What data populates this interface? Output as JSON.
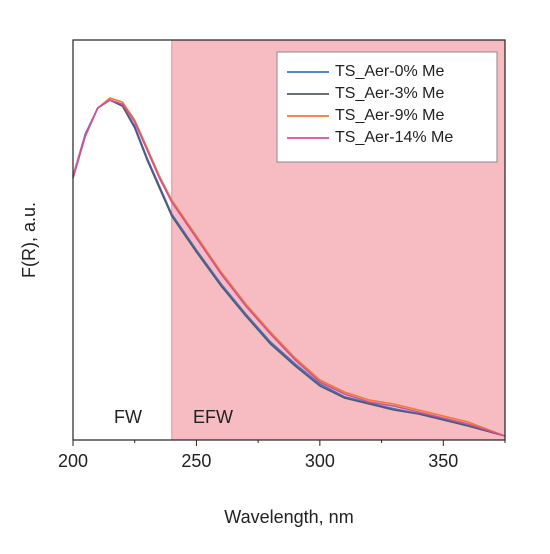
{
  "chart_data": {
    "type": "line",
    "xlabel": "Wavelength, nm",
    "ylabel": "F(R), a.u.",
    "annotations": [
      "FW",
      "EFW"
    ],
    "highlight": {
      "xmin": 240,
      "xmax": 375,
      "color": "#f6bcc2"
    },
    "x": [
      200,
      205,
      210,
      215,
      220,
      225,
      230,
      235,
      240,
      250,
      260,
      270,
      280,
      290,
      300,
      310,
      320,
      330,
      340,
      350,
      360,
      375
    ],
    "series": [
      {
        "name": "TS_Aer-0% Me",
        "color": "#3d72c8",
        "values": [
          0.66,
          0.765,
          0.83,
          0.85,
          0.835,
          0.785,
          0.705,
          0.635,
          0.565,
          0.475,
          0.39,
          0.315,
          0.245,
          0.19,
          0.14,
          0.108,
          0.092,
          0.078,
          0.066,
          0.052,
          0.036,
          0.01
        ]
      },
      {
        "name": "TS_Aer-3% Me",
        "color": "#555a66",
        "values": [
          0.655,
          0.76,
          0.83,
          0.85,
          0.835,
          0.78,
          0.7,
          0.63,
          0.56,
          0.47,
          0.385,
          0.31,
          0.24,
          0.185,
          0.135,
          0.105,
          0.09,
          0.075,
          0.065,
          0.05,
          0.035,
          0.01
        ]
      },
      {
        "name": "TS_Aer-9% Me",
        "color": "#f07a30",
        "values": [
          0.66,
          0.76,
          0.83,
          0.855,
          0.845,
          0.8,
          0.73,
          0.66,
          0.6,
          0.51,
          0.42,
          0.34,
          0.27,
          0.205,
          0.15,
          0.12,
          0.1,
          0.09,
          0.075,
          0.06,
          0.045,
          0.01
        ]
      },
      {
        "name": "TS_Aer-14% Me",
        "color": "#d04fa0",
        "values": [
          0.655,
          0.76,
          0.83,
          0.85,
          0.84,
          0.795,
          0.725,
          0.655,
          0.595,
          0.505,
          0.415,
          0.335,
          0.265,
          0.2,
          0.145,
          0.115,
          0.095,
          0.085,
          0.07,
          0.055,
          0.04,
          0.01
        ]
      }
    ],
    "xlim": [
      200,
      375
    ],
    "xticks": [
      200,
      250,
      300,
      350
    ],
    "xminor_ticks": [
      225,
      275,
      325,
      375
    ],
    "ylim": [
      0,
      1
    ],
    "legend": "upper right",
    "grid": false
  }
}
